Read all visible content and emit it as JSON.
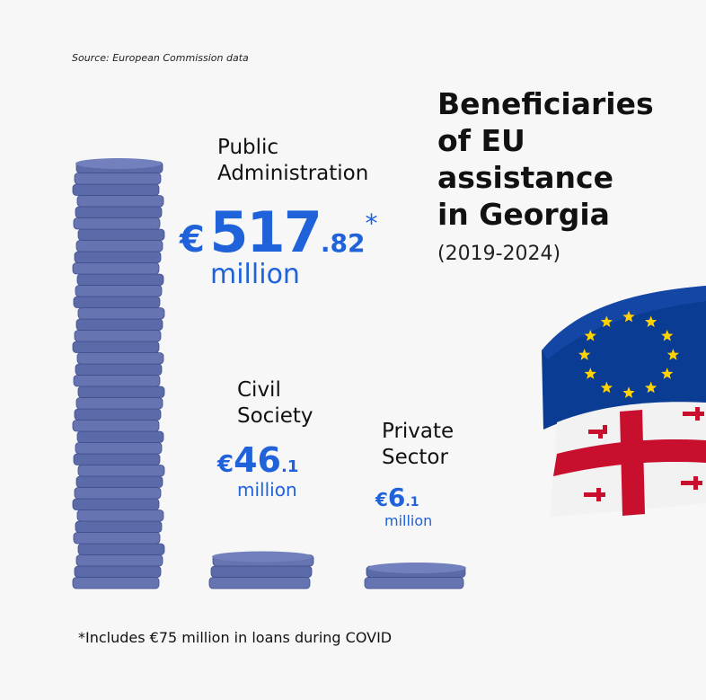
{
  "source": "Source: European Commission data",
  "title_lines": [
    "Beneficiaries",
    "of EU",
    "assistance",
    "in Georgia"
  ],
  "years": "(2019-2024)",
  "footnote": "*Includes €75 million in loans during COVID",
  "colors": {
    "coin": "#5b6aa8",
    "coin_edge": "#3f4e8d",
    "accent": "#1f62d9",
    "eu_blue": "#0b3c94",
    "eu_star": "#ffd200",
    "georgia_red": "#c8102e"
  },
  "icons": [
    "coin-stack-icon",
    "eu-flag-icon",
    "georgia-flag-icon"
  ],
  "chart_data": {
    "type": "bar",
    "unit": "million",
    "currency": "€",
    "categories": [
      {
        "label_lines": [
          "Public",
          "Administration"
        ],
        "currency": "€",
        "int": "517",
        "dec": ".82",
        "mark": "*",
        "unit": "million",
        "value": 517.82
      },
      {
        "label_lines": [
          "Civil",
          "Society"
        ],
        "currency": "€",
        "int": "46",
        "dec": ".1",
        "mark": "",
        "unit": "million",
        "value": 46.1
      },
      {
        "label_lines": [
          "Private",
          "Sector"
        ],
        "currency": "€",
        "int": "6",
        "dec": ".1",
        "mark": "",
        "unit": "million",
        "value": 6.1
      }
    ]
  }
}
